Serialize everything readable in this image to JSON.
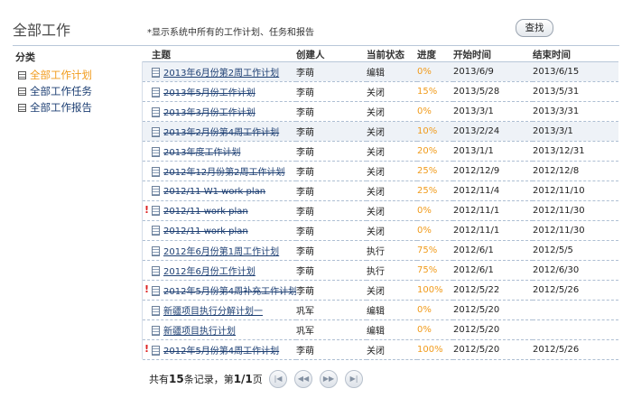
{
  "header": {
    "title": "全部工作",
    "description": "*显示系统中所有的工作计划、任务和报告",
    "search_label": "查找"
  },
  "sidebar": {
    "heading": "分类",
    "items": [
      {
        "label": "全部工作计划",
        "active": true
      },
      {
        "label": "全部工作任务",
        "active": false
      },
      {
        "label": "全部工作报告",
        "active": false
      }
    ]
  },
  "table": {
    "columns": [
      "主题",
      "创建人",
      "当前状态",
      "进度",
      "开始时间",
      "结束时间"
    ],
    "rows": [
      {
        "subject": "2013年6月份第2周工作计划",
        "creator": "李萌",
        "status": "编辑",
        "progress": "0%",
        "start": "2013/6/9",
        "end": "2013/6/15",
        "struck": false,
        "flag": false
      },
      {
        "subject": "2013年5月份工作计划",
        "creator": "李萌",
        "status": "关闭",
        "progress": "15%",
        "start": "2013/5/28",
        "end": "2013/5/31",
        "struck": true,
        "flag": false
      },
      {
        "subject": "2013年3月份工作计划",
        "creator": "李萌",
        "status": "关闭",
        "progress": "0%",
        "start": "2013/3/1",
        "end": "2013/3/31",
        "struck": true,
        "flag": false
      },
      {
        "subject": "2013年2月份第4周工作计划",
        "creator": "李萌",
        "status": "关闭",
        "progress": "10%",
        "start": "2013/2/24",
        "end": "2013/3/1",
        "struck": true,
        "flag": false
      },
      {
        "subject": "2013年度工作计划",
        "creator": "李萌",
        "status": "关闭",
        "progress": "20%",
        "start": "2013/1/1",
        "end": "2013/12/31",
        "struck": true,
        "flag": false
      },
      {
        "subject": "2012年12月份第2周工作计划",
        "creator": "李萌",
        "status": "关闭",
        "progress": "25%",
        "start": "2012/12/9",
        "end": "2012/12/8",
        "struck": true,
        "flag": false
      },
      {
        "subject": "2012/11 W1 work plan",
        "creator": "李萌",
        "status": "关闭",
        "progress": "25%",
        "start": "2012/11/4",
        "end": "2012/11/10",
        "struck": true,
        "flag": false
      },
      {
        "subject": "2012/11 work plan",
        "creator": "李萌",
        "status": "关闭",
        "progress": "0%",
        "start": "2012/11/1",
        "end": "2012/11/30",
        "struck": true,
        "flag": true
      },
      {
        "subject": "2012/11 work plan",
        "creator": "李萌",
        "status": "关闭",
        "progress": "0%",
        "start": "2012/11/1",
        "end": "2012/11/30",
        "struck": true,
        "flag": false
      },
      {
        "subject": "2012年6月份第1周工作计划",
        "creator": "李萌",
        "status": "执行",
        "progress": "75%",
        "start": "2012/6/1",
        "end": "2012/5/5",
        "struck": false,
        "flag": false
      },
      {
        "subject": "2012年6月份工作计划",
        "creator": "李萌",
        "status": "执行",
        "progress": "75%",
        "start": "2012/6/1",
        "end": "2012/6/30",
        "struck": false,
        "flag": false
      },
      {
        "subject": "2012年5月份第4周补充工作计划",
        "creator": "李萌",
        "status": "关闭",
        "progress": "100%",
        "start": "2012/5/22",
        "end": "2012/5/26",
        "struck": true,
        "flag": true
      },
      {
        "subject": "新疆项目执行分解计划一",
        "creator": "巩军",
        "status": "编辑",
        "progress": "0%",
        "start": "2012/5/20",
        "end": "",
        "struck": false,
        "flag": false
      },
      {
        "subject": "新疆项目执行计划",
        "creator": "巩军",
        "status": "编辑",
        "progress": "0%",
        "start": "2012/5/20",
        "end": "",
        "struck": false,
        "flag": false
      },
      {
        "subject": "2012年5月份第4周工作计划",
        "creator": "李萌",
        "status": "关闭",
        "progress": "100%",
        "start": "2012/5/20",
        "end": "2012/5/26",
        "struck": true,
        "flag": true
      }
    ]
  },
  "pager": {
    "prefix": "共有",
    "total": "15",
    "middle": "条记录，第",
    "page": "1/1",
    "suffix": "页",
    "buttons": [
      {
        "name": "first-page-button",
        "glyph": "|◀"
      },
      {
        "name": "prev-page-button",
        "glyph": "◀◀"
      },
      {
        "name": "next-page-button",
        "glyph": "▶▶"
      },
      {
        "name": "last-page-button",
        "glyph": "▶|"
      }
    ]
  }
}
